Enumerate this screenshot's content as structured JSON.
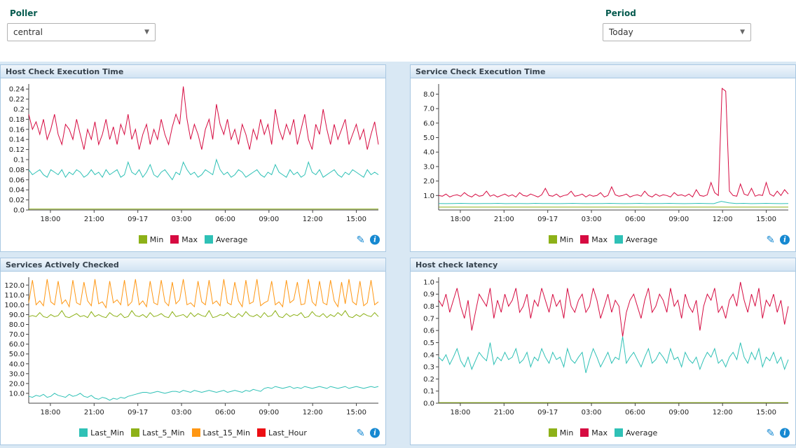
{
  "filters": {
    "poller": {
      "label": "Poller",
      "value": "central"
    },
    "period": {
      "label": "Period",
      "value": "Today"
    }
  },
  "icons": {
    "edit": "✎",
    "info": "i",
    "caret": "▼"
  },
  "colors": {
    "min_green": "#8db118",
    "max_red": "#d60b41",
    "avg_teal": "#2fc1b6",
    "orange": "#ff9713",
    "pure_red": "#ec0e13",
    "accent_blue": "#1588d1"
  },
  "chart_data": [
    {
      "type": "line",
      "title": "Host Check Execution Time",
      "ylim": [
        0,
        0.25
      ],
      "yticks": [
        "0.24",
        "0.22",
        "0.2",
        "0.18",
        "0.16",
        "0.14",
        "0.12",
        "0.1",
        "0.08",
        "0.06",
        "0.04",
        "0.02",
        "0.0"
      ],
      "xticks": [
        {
          "label": "18:00",
          "f": 0.062
        },
        {
          "label": "21:00",
          "f": 0.187
        },
        {
          "label": "09-17",
          "f": 0.312
        },
        {
          "label": "03:00",
          "f": 0.437
        },
        {
          "label": "06:00",
          "f": 0.562
        },
        {
          "label": "09:00",
          "f": 0.687
        },
        {
          "label": "12:00",
          "f": 0.812
        },
        {
          "label": "15:00",
          "f": 0.937
        }
      ],
      "series": [
        {
          "name": "Min",
          "color": "#8db118",
          "values": [
            0.002,
            0.002
          ]
        },
        {
          "name": "Max",
          "color": "#d60b41",
          "values": [
            0.19,
            0.16,
            0.175,
            0.15,
            0.18,
            0.14,
            0.16,
            0.19,
            0.15,
            0.13,
            0.17,
            0.16,
            0.14,
            0.18,
            0.15,
            0.12,
            0.16,
            0.14,
            0.175,
            0.13,
            0.15,
            0.18,
            0.14,
            0.165,
            0.13,
            0.17,
            0.15,
            0.19,
            0.14,
            0.16,
            0.12,
            0.15,
            0.17,
            0.13,
            0.16,
            0.14,
            0.18,
            0.15,
            0.13,
            0.165,
            0.19,
            0.17,
            0.245,
            0.18,
            0.14,
            0.17,
            0.15,
            0.12,
            0.16,
            0.18,
            0.14,
            0.21,
            0.17,
            0.15,
            0.18,
            0.14,
            0.16,
            0.13,
            0.17,
            0.15,
            0.12,
            0.16,
            0.14,
            0.18,
            0.15,
            0.17,
            0.13,
            0.2,
            0.16,
            0.14,
            0.17,
            0.15,
            0.18,
            0.13,
            0.16,
            0.19,
            0.14,
            0.12,
            0.17,
            0.15,
            0.2,
            0.16,
            0.13,
            0.17,
            0.14,
            0.16,
            0.18,
            0.13,
            0.15,
            0.17,
            0.14,
            0.16,
            0.12,
            0.15,
            0.175,
            0.13
          ]
        },
        {
          "name": "Average",
          "color": "#2fc1b6",
          "values": [
            0.08,
            0.07,
            0.075,
            0.08,
            0.07,
            0.065,
            0.08,
            0.075,
            0.07,
            0.08,
            0.065,
            0.075,
            0.07,
            0.08,
            0.075,
            0.065,
            0.07,
            0.08,
            0.07,
            0.075,
            0.065,
            0.08,
            0.07,
            0.075,
            0.08,
            0.065,
            0.07,
            0.095,
            0.075,
            0.07,
            0.08,
            0.065,
            0.075,
            0.09,
            0.07,
            0.065,
            0.075,
            0.08,
            0.07,
            0.06,
            0.075,
            0.07,
            0.095,
            0.08,
            0.07,
            0.075,
            0.065,
            0.07,
            0.08,
            0.075,
            0.07,
            0.1,
            0.08,
            0.07,
            0.075,
            0.065,
            0.07,
            0.08,
            0.075,
            0.065,
            0.07,
            0.075,
            0.08,
            0.07,
            0.065,
            0.075,
            0.07,
            0.09,
            0.075,
            0.07,
            0.065,
            0.08,
            0.07,
            0.075,
            0.065,
            0.07,
            0.095,
            0.075,
            0.07,
            0.08,
            0.065,
            0.07,
            0.075,
            0.08,
            0.07,
            0.065,
            0.075,
            0.07,
            0.08,
            0.075,
            0.07,
            0.065,
            0.08,
            0.07,
            0.075,
            0.07
          ]
        }
      ]
    },
    {
      "type": "line",
      "title": "Service Check Execution Time",
      "ylim": [
        0,
        8.7
      ],
      "yticks": [
        "8.0",
        "7.0",
        "6.0",
        "5.0",
        "4.0",
        "3.0",
        "2.0",
        "1.0"
      ],
      "xticks": [
        {
          "label": "18:00",
          "f": 0.062
        },
        {
          "label": "21:00",
          "f": 0.187
        },
        {
          "label": "09-17",
          "f": 0.312
        },
        {
          "label": "03:00",
          "f": 0.437
        },
        {
          "label": "06:00",
          "f": 0.562
        },
        {
          "label": "09:00",
          "f": 0.687
        },
        {
          "label": "12:00",
          "f": 0.812
        },
        {
          "label": "15:00",
          "f": 0.937
        }
      ],
      "series": [
        {
          "name": "Min",
          "color": "#8db118",
          "values": [
            0.2,
            0.2
          ]
        },
        {
          "name": "Max",
          "color": "#d60b41",
          "values": [
            1.0,
            0.95,
            1.1,
            0.9,
            1.0,
            1.05,
            0.95,
            1.2,
            1.0,
            0.9,
            1.1,
            0.95,
            1.0,
            1.3,
            0.95,
            1.05,
            0.9,
            1.0,
            1.1,
            0.95,
            1.05,
            0.9,
            1.2,
            1.0,
            0.95,
            1.1,
            1.0,
            0.9,
            1.05,
            1.5,
            1.0,
            0.95,
            1.1,
            0.9,
            1.0,
            1.05,
            1.3,
            0.95,
            1.0,
            1.1,
            0.9,
            1.05,
            0.95,
            1.0,
            1.2,
            0.9,
            1.0,
            1.6,
            1.05,
            0.95,
            1.0,
            1.1,
            0.9,
            1.0,
            1.05,
            0.95,
            1.3,
            1.0,
            0.9,
            1.1,
            0.95,
            1.05,
            1.0,
            0.9,
            1.2,
            1.0,
            1.05,
            0.95,
            1.1,
            0.9,
            1.4,
            1.0,
            0.95,
            1.05,
            1.9,
            1.2,
            1.0,
            8.4,
            8.2,
            1.3,
            1.0,
            0.95,
            1.8,
            1.1,
            1.0,
            1.5,
            0.95,
            1.05,
            1.0,
            1.9,
            1.1,
            0.95,
            1.3,
            1.0,
            1.4,
            1.1
          ]
        },
        {
          "name": "Average",
          "color": "#2fc1b6",
          "values": [
            0.45,
            0.44,
            0.45,
            0.46,
            0.45,
            0.44,
            0.45,
            0.45,
            0.46,
            0.44,
            0.45,
            0.45,
            0.44,
            0.46,
            0.45,
            0.45,
            0.44,
            0.45,
            0.46,
            0.45,
            0.44,
            0.45,
            0.45,
            0.46,
            0.45,
            0.44,
            0.45,
            0.46,
            0.44,
            0.45,
            0.45,
            0.46,
            0.45,
            0.44,
            0.45,
            0.46,
            0.45,
            0.44,
            0.6,
            0.5,
            0.45,
            0.46,
            0.44,
            0.45,
            0.46,
            0.45,
            0.44,
            0.45
          ]
        }
      ]
    },
    {
      "type": "line",
      "title": "Services Actively Checked",
      "ylim": [
        0,
        128
      ],
      "yticks": [
        "120.0",
        "110.0",
        "100.0",
        "90.0",
        "80.0",
        "70.0",
        "60.0",
        "50.0",
        "40.0",
        "30.0",
        "20.0",
        "10.0"
      ],
      "xticks": [
        {
          "label": "18:00",
          "f": 0.062
        },
        {
          "label": "21:00",
          "f": 0.187
        },
        {
          "label": "09-17",
          "f": 0.312
        },
        {
          "label": "03:00",
          "f": 0.437
        },
        {
          "label": "06:00",
          "f": 0.562
        },
        {
          "label": "09:00",
          "f": 0.687
        },
        {
          "label": "12:00",
          "f": 0.812
        },
        {
          "label": "15:00",
          "f": 0.937
        }
      ],
      "series": [
        {
          "name": "Last_Min",
          "color": "#2fc1b6",
          "values": [
            7,
            6,
            8,
            7,
            9,
            6,
            7,
            10,
            8,
            7,
            6,
            9,
            7,
            8,
            10,
            7,
            6,
            8,
            5,
            4,
            6,
            5,
            3,
            5,
            4,
            6,
            5,
            7,
            8,
            9,
            10,
            11,
            11,
            10,
            11,
            12,
            11,
            10,
            11,
            12,
            12,
            11,
            13,
            12,
            11,
            13,
            12,
            11,
            12,
            13,
            12,
            11,
            12,
            13,
            11,
            12,
            13,
            12,
            11,
            13,
            12,
            14,
            13,
            12,
            15,
            16,
            15,
            17,
            16,
            15,
            16,
            17,
            15,
            16,
            15,
            17,
            16,
            15,
            16,
            17,
            16,
            15,
            17,
            16,
            15,
            16,
            17,
            15,
            16,
            17,
            16,
            15,
            16,
            17,
            16,
            17
          ]
        },
        {
          "name": "Last_5_Min",
          "color": "#8db118",
          "values": [
            88,
            89,
            88,
            92,
            88,
            87,
            90,
            88,
            89,
            94,
            88,
            87,
            89,
            91,
            88,
            89,
            87,
            93,
            88,
            90,
            88,
            87,
            92,
            89,
            88,
            91,
            87,
            88,
            94,
            89,
            88,
            90,
            87,
            92,
            88,
            89,
            91,
            88,
            87,
            93,
            88,
            89,
            90,
            87,
            92,
            88,
            91,
            89,
            88,
            94,
            87,
            88,
            90,
            89,
            92,
            88,
            87,
            91,
            88,
            93,
            89,
            88,
            90,
            87,
            92,
            88,
            89,
            94,
            88,
            87,
            91,
            88,
            90,
            89,
            92,
            87,
            88,
            93,
            89,
            88,
            91,
            87,
            90,
            88,
            92,
            89,
            94,
            88,
            87,
            90,
            88,
            91,
            89,
            88,
            92,
            88
          ]
        },
        {
          "name": "Last_15_Min",
          "color": "#ff9713",
          "values": [
            102,
            125,
            100,
            104,
            99,
            126,
            103,
            100,
            124,
            101,
            105,
            98,
            125,
            102,
            100,
            123,
            104,
            99,
            126,
            101,
            103,
            97,
            124,
            102,
            105,
            100,
            125,
            99,
            103,
            126,
            100,
            104,
            98,
            124,
            102,
            100,
            125,
            103,
            99,
            123,
            101,
            105,
            126,
            100,
            102,
            98,
            124,
            103,
            100,
            125,
            101,
            104,
            99,
            126,
            102,
            100,
            123,
            104,
            98,
            125,
            101,
            103,
            126,
            99,
            102,
            104,
            124,
            100,
            103,
            98,
            125,
            102,
            105,
            123,
            100,
            101,
            126,
            103,
            99,
            124,
            102,
            100,
            125,
            104,
            98,
            123,
            101,
            126,
            103,
            100,
            124,
            99,
            102,
            125,
            100,
            103
          ]
        },
        {
          "name": "Last_Hour",
          "color": "#ec0e13",
          "values": []
        }
      ]
    },
    {
      "type": "line",
      "title": "Host check latency",
      "ylim": [
        0,
        1.04
      ],
      "yticks": [
        "1.0",
        "0.9",
        "0.8",
        "0.7",
        "0.6",
        "0.5",
        "0.4",
        "0.3",
        "0.2",
        "0.1",
        "0.0"
      ],
      "xticks": [
        {
          "label": "18:00",
          "f": 0.062
        },
        {
          "label": "21:00",
          "f": 0.187
        },
        {
          "label": "09-17",
          "f": 0.312
        },
        {
          "label": "03:00",
          "f": 0.437
        },
        {
          "label": "06:00",
          "f": 0.562
        },
        {
          "label": "09:00",
          "f": 0.687
        },
        {
          "label": "12:00",
          "f": 0.812
        },
        {
          "label": "15:00",
          "f": 0.937
        }
      ],
      "series": [
        {
          "name": "Min",
          "color": "#8db118",
          "values": [
            0.005,
            0.005
          ]
        },
        {
          "name": "Max",
          "color": "#d60b41",
          "values": [
            0.85,
            0.8,
            0.9,
            0.75,
            0.85,
            0.95,
            0.8,
            0.7,
            0.85,
            0.6,
            0.75,
            0.9,
            0.85,
            0.8,
            0.95,
            0.7,
            0.85,
            0.75,
            0.9,
            0.8,
            0.85,
            0.95,
            0.75,
            0.8,
            0.9,
            0.7,
            0.85,
            0.8,
            0.95,
            0.85,
            0.75,
            0.9,
            0.8,
            0.85,
            0.7,
            0.95,
            0.8,
            0.75,
            0.85,
            0.9,
            0.75,
            0.8,
            0.95,
            0.85,
            0.7,
            0.8,
            0.9,
            0.75,
            0.85,
            0.8,
            0.55,
            0.75,
            0.85,
            0.9,
            0.8,
            0.7,
            0.85,
            0.95,
            0.75,
            0.8,
            0.9,
            0.85,
            0.75,
            0.95,
            0.8,
            0.85,
            0.7,
            0.9,
            0.8,
            0.75,
            0.85,
            0.6,
            0.8,
            0.9,
            0.85,
            0.95,
            0.75,
            0.8,
            0.7,
            0.85,
            0.9,
            0.8,
            1.0,
            0.85,
            0.75,
            0.9,
            0.8,
            0.95,
            0.7,
            0.85,
            0.8,
            0.9,
            0.75,
            0.85,
            0.65,
            0.8
          ]
        },
        {
          "name": "Average",
          "color": "#2fc1b6",
          "values": [
            0.38,
            0.35,
            0.4,
            0.32,
            0.38,
            0.45,
            0.35,
            0.3,
            0.38,
            0.28,
            0.35,
            0.42,
            0.38,
            0.35,
            0.5,
            0.32,
            0.38,
            0.35,
            0.42,
            0.36,
            0.38,
            0.45,
            0.33,
            0.36,
            0.42,
            0.3,
            0.38,
            0.35,
            0.45,
            0.38,
            0.33,
            0.42,
            0.36,
            0.38,
            0.3,
            0.45,
            0.36,
            0.33,
            0.38,
            0.42,
            0.25,
            0.36,
            0.45,
            0.38,
            0.3,
            0.36,
            0.42,
            0.33,
            0.38,
            0.36,
            0.55,
            0.33,
            0.38,
            0.42,
            0.36,
            0.3,
            0.38,
            0.45,
            0.33,
            0.36,
            0.42,
            0.38,
            0.33,
            0.45,
            0.36,
            0.38,
            0.3,
            0.42,
            0.36,
            0.33,
            0.38,
            0.28,
            0.36,
            0.42,
            0.38,
            0.45,
            0.33,
            0.36,
            0.3,
            0.38,
            0.42,
            0.36,
            0.5,
            0.38,
            0.33,
            0.42,
            0.36,
            0.45,
            0.3,
            0.38,
            0.35,
            0.42,
            0.33,
            0.38,
            0.28,
            0.36
          ]
        }
      ]
    }
  ]
}
